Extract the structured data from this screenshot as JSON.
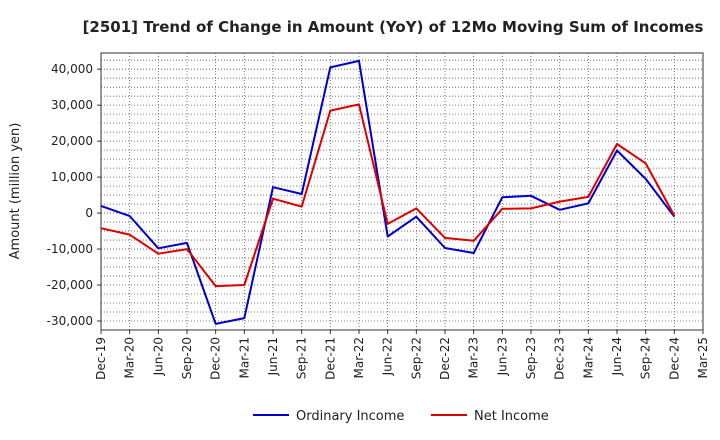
{
  "chart_data": {
    "type": "line",
    "title": "[2501]  Trend of Change in Amount (YoY) of 12Mo Moving Sum of Incomes",
    "xlabel": "",
    "ylabel": "Amount (million yen)",
    "x": [
      "Dec-19",
      "Mar-20",
      "Jun-20",
      "Sep-20",
      "Dec-20",
      "Mar-21",
      "Jun-21",
      "Sep-21",
      "Dec-21",
      "Mar-22",
      "Jun-22",
      "Sep-22",
      "Dec-22",
      "Mar-23",
      "Jun-23",
      "Sep-23",
      "Dec-23",
      "Mar-24",
      "Jun-24",
      "Sep-24",
      "Dec-24",
      "Mar-25"
    ],
    "y_ticks": [
      "40,000",
      "30,000",
      "20,000",
      "10,000",
      "0",
      "-10,000",
      "-20,000",
      "-30,000"
    ],
    "ylim": [
      -32500,
      44500
    ],
    "grid": true,
    "legend_position": "bottom",
    "series": [
      {
        "name": "Ordinary Income",
        "color": "#0000cc",
        "values": [
          2000,
          -800,
          -9800,
          -8300,
          -30800,
          -29200,
          7200,
          5300,
          40500,
          42300,
          -6500,
          -1000,
          -9700,
          -11100,
          4400,
          4800,
          900,
          2700,
          17400,
          9500,
          -1000,
          null
        ]
      },
      {
        "name": "Net Income",
        "color": "#dd0000",
        "values": [
          -4200,
          -6000,
          -11300,
          -10000,
          -20300,
          -20000,
          4000,
          1800,
          28500,
          30200,
          -3000,
          1300,
          -6900,
          -7700,
          1200,
          1300,
          3200,
          4500,
          19200,
          13800,
          -700,
          null
        ]
      }
    ]
  }
}
